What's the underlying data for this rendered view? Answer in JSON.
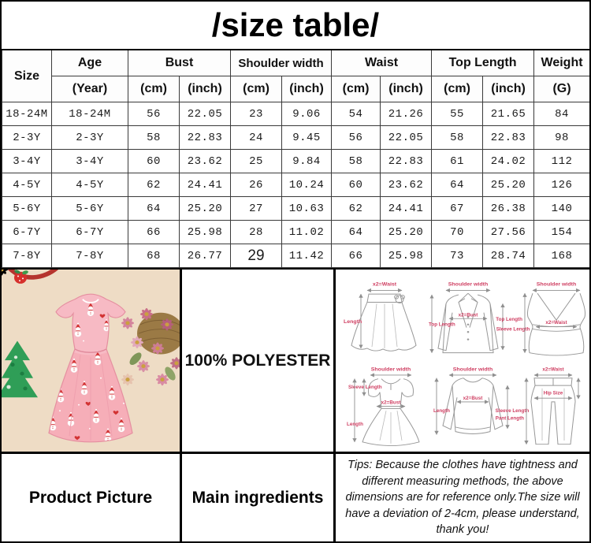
{
  "title": "/size table/",
  "table": {
    "header": {
      "size": "Size",
      "age": "Age",
      "age_sub": "(Year)",
      "bust": "Bust",
      "shoulder_width": "Shoulder width",
      "waist": "Waist",
      "top_length": "Top Length",
      "weight": "Weight",
      "weight_sub": "(G)",
      "cm": "(cm)",
      "inch": "(inch)"
    },
    "rows": [
      [
        "18-24M",
        "18-24M",
        "56",
        "22.05",
        "23",
        "9.06",
        "54",
        "21.26",
        "55",
        "21.65",
        "84"
      ],
      [
        "2-3Y",
        "2-3Y",
        "58",
        "22.83",
        "24",
        "9.45",
        "56",
        "22.05",
        "58",
        "22.83",
        "98"
      ],
      [
        "3-4Y",
        "3-4Y",
        "60",
        "23.62",
        "25",
        "9.84",
        "58",
        "22.83",
        "61",
        "24.02",
        "112"
      ],
      [
        "4-5Y",
        "4-5Y",
        "62",
        "24.41",
        "26",
        "10.24",
        "60",
        "23.62",
        "64",
        "25.20",
        "126"
      ],
      [
        "5-6Y",
        "5-6Y",
        "64",
        "25.20",
        "27",
        "10.63",
        "62",
        "24.41",
        "67",
        "26.38",
        "140"
      ],
      [
        "6-7Y",
        "6-7Y",
        "66",
        "25.98",
        "28",
        "11.02",
        "64",
        "25.20",
        "70",
        "27.56",
        "154"
      ],
      [
        "7-8Y",
        "7-8Y",
        "68",
        "26.77",
        "29",
        "11.42",
        "66",
        "25.98",
        "73",
        "28.74",
        "168"
      ]
    ]
  },
  "materials": {
    "value": "100% POLYESTER"
  },
  "bottom": {
    "product_label": "Product Picture",
    "ingredients_label": "Main ingredients",
    "tips": "Tips: Because the clothes have tightness and different measuring methods, the above dimensions are for reference only.The size will have a deviation of 2-4cm, please understand, thank you!"
  },
  "diagrams": {
    "skirt": {
      "waist": "x2=Waist",
      "length": "Length"
    },
    "jacket": {
      "shoulder": "Shoulder width",
      "top_length": "Top Length",
      "bust": "x2=Bust",
      "sleeve": "Sleeve Length"
    },
    "vest": {
      "shoulder": "Shoulder width",
      "top_length": "Top Length",
      "waist": "x2=Waist"
    },
    "dress": {
      "shoulder": "Shoulder width",
      "sleeve": "Sleeve Length",
      "bust": "x2=Bust",
      "length": "Length"
    },
    "sweater": {
      "shoulder": "Shoulder width",
      "length": "Length",
      "bust": "x2=Bust",
      "sleeve": "Sleeve Length"
    },
    "pants": {
      "waist": "x2=Waist",
      "hip": "Hip Size",
      "length": "Pant Length"
    }
  },
  "colors": {
    "diagram_label": "#cf3f62",
    "photo_background": "#ecd9c0",
    "dress_pink": "#f6aeb8",
    "motif_red": "#d23333",
    "tree_green": "#2f9e57",
    "border_black": "#000000"
  }
}
